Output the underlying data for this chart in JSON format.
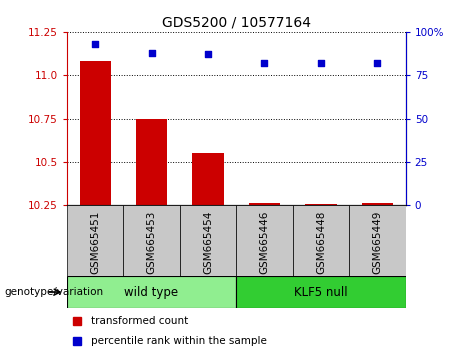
{
  "title": "GDS5200 / 10577164",
  "categories": [
    "GSM665451",
    "GSM665453",
    "GSM665454",
    "GSM665446",
    "GSM665448",
    "GSM665449"
  ],
  "bar_values": [
    11.08,
    10.75,
    10.55,
    10.262,
    10.258,
    10.262
  ],
  "scatter_values": [
    93,
    88,
    87,
    82,
    82,
    82
  ],
  "ylim_left": [
    10.25,
    11.25
  ],
  "ylim_right": [
    0,
    100
  ],
  "yticks_left": [
    10.25,
    10.5,
    10.75,
    11.0,
    11.25
  ],
  "yticks_right": [
    0,
    25,
    50,
    75,
    100
  ],
  "bar_color": "#cc0000",
  "scatter_color": "#0000cc",
  "bar_base": 10.25,
  "n_wild_type": 3,
  "n_klf5_null": 3,
  "wild_type_color": "#90ee90",
  "klf5_null_color": "#32cd32",
  "label_bg_color": "#c8c8c8",
  "legend_red_label": "transformed count",
  "legend_blue_label": "percentile rank within the sample",
  "genotype_label": "genotype/variation",
  "wild_type_label": "wild type",
  "klf5_null_label": "KLF5 null"
}
